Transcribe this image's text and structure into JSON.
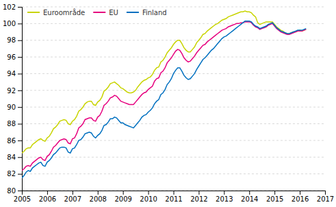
{
  "chart_data": {
    "type": "line",
    "x": [
      2005,
      2005.0833333333,
      2005.1666666667,
      2005.25,
      2005.3333333333,
      2005.4166666667,
      2005.5,
      2005.5833333333,
      2005.6666666667,
      2005.75,
      2005.8333333333,
      2005.9166666667,
      2006,
      2006.0833333333,
      2006.1666666667,
      2006.25,
      2006.3333333333,
      2006.4166666667,
      2006.5,
      2006.5833333333,
      2006.6666666667,
      2006.75,
      2006.8333333333,
      2006.9166666667,
      2007,
      2007.0833333333,
      2007.1666666667,
      2007.25,
      2007.3333333333,
      2007.4166666667,
      2007.5,
      2007.5833333333,
      2007.6666666667,
      2007.75,
      2007.8333333333,
      2007.9166666667,
      2008,
      2008.0833333333,
      2008.1666666667,
      2008.25,
      2008.3333333333,
      2008.4166666667,
      2008.5,
      2008.5833333333,
      2008.6666666667,
      2008.75,
      2008.8333333333,
      2008.9166666667,
      2009,
      2009.0833333333,
      2009.1666666667,
      2009.25,
      2009.3333333333,
      2009.4166666667,
      2009.5,
      2009.5833333333,
      2009.6666666667,
      2009.75,
      2009.8333333333,
      2009.9166666667,
      2010,
      2010.0833333333,
      2010.1666666667,
      2010.25,
      2010.3333333333,
      2010.4166666667,
      2010.5,
      2010.5833333333,
      2010.6666666667,
      2010.75,
      2010.8333333333,
      2010.9166666667,
      2011,
      2011.0833333333,
      2011.1666666667,
      2011.25,
      2011.3333333333,
      2011.4166666667,
      2011.5,
      2011.5833333333,
      2011.6666666667,
      2011.75,
      2011.8333333333,
      2011.9166666667,
      2012,
      2012.0833333333,
      2012.1666666667,
      2012.25,
      2012.3333333333,
      2012.4166666667,
      2012.5,
      2012.5833333333,
      2012.6666666667,
      2012.75,
      2012.8333333333,
      2012.9166666667,
      2013,
      2013.0833333333,
      2013.1666666667,
      2013.25,
      2013.3333333333,
      2013.4166666667,
      2013.5,
      2013.5833333333,
      2013.6666666667,
      2013.75,
      2013.8333333333,
      2013.9166666667,
      2014,
      2014.0833333333,
      2014.1666666667,
      2014.25,
      2014.3333333333,
      2014.4166666667,
      2014.5,
      2014.5833333333,
      2014.6666666667,
      2014.75,
      2014.8333333333,
      2014.9166666667,
      2015,
      2015.0833333333,
      2015.1666666667,
      2015.25,
      2015.3333333333,
      2015.4166666667,
      2015.5,
      2015.5833333333,
      2015.6666666667,
      2015.75,
      2015.8333333333,
      2015.9166666667,
      2016,
      2016.0833333333,
      2016.1666666667,
      2016.25
    ],
    "series": [
      {
        "name": "Euroområde",
        "color": "#c8d400",
        "values": [
          84.5,
          84.7,
          85.0,
          85.1,
          85.1,
          85.5,
          85.7,
          85.9,
          86.1,
          86.2,
          86.0,
          85.9,
          86.3,
          86.5,
          86.9,
          87.4,
          87.6,
          87.9,
          88.3,
          88.4,
          88.5,
          88.4,
          88.0,
          87.9,
          88.3,
          88.5,
          88.9,
          89.5,
          89.7,
          90.0,
          90.4,
          90.6,
          90.7,
          90.7,
          90.3,
          90.2,
          90.6,
          90.8,
          91.2,
          91.9,
          92.1,
          92.4,
          92.8,
          92.9,
          93.0,
          92.8,
          92.6,
          92.3,
          92.2,
          92.0,
          91.8,
          91.7,
          91.7,
          91.8,
          92.0,
          92.4,
          92.7,
          93.0,
          93.2,
          93.3,
          93.5,
          93.6,
          93.9,
          94.4,
          94.7,
          94.8,
          95.4,
          95.6,
          96.0,
          96.5,
          96.8,
          97.1,
          97.5,
          97.8,
          98.0,
          98.0,
          97.6,
          97.1,
          96.8,
          96.6,
          96.6,
          96.9,
          97.2,
          97.7,
          98.0,
          98.3,
          98.7,
          98.8,
          99.1,
          99.3,
          99.5,
          99.7,
          99.9,
          100.0,
          100.2,
          100.4,
          100.5,
          100.6,
          100.8,
          100.9,
          101.0,
          101.1,
          101.2,
          101.3,
          101.4,
          101.4,
          101.5,
          101.4,
          101.4,
          101.3,
          101.0,
          100.8,
          100.1,
          99.9,
          100.0,
          100.1,
          100.2,
          100.2,
          100.2,
          100.2,
          99.9,
          99.6,
          99.4,
          99.2,
          99.1,
          98.9,
          98.8,
          98.8,
          98.9,
          99.0,
          99.0,
          99.1,
          99.2,
          99.1,
          99.2,
          99.3
        ]
      },
      {
        "name": "EU",
        "color": "#e6007e",
        "values": [
          82.4,
          82.6,
          82.9,
          83.0,
          82.9,
          83.3,
          83.5,
          83.7,
          83.9,
          84.0,
          83.7,
          83.6,
          84.1,
          84.3,
          84.7,
          85.2,
          85.4,
          85.7,
          86.0,
          86.1,
          86.2,
          86.1,
          85.7,
          85.6,
          86.2,
          86.3,
          86.8,
          87.5,
          87.7,
          88.0,
          88.5,
          88.6,
          88.7,
          88.7,
          88.4,
          88.3,
          88.8,
          89.0,
          89.5,
          90.2,
          90.4,
          90.7,
          91.1,
          91.2,
          91.4,
          91.3,
          91.0,
          90.7,
          90.6,
          90.5,
          90.4,
          90.3,
          90.3,
          90.3,
          90.6,
          90.9,
          91.2,
          91.5,
          91.7,
          91.8,
          92.1,
          92.3,
          92.5,
          93.1,
          93.4,
          93.5,
          94.1,
          94.3,
          94.7,
          95.3,
          95.6,
          95.9,
          96.3,
          96.7,
          96.9,
          96.8,
          96.4,
          95.9,
          95.6,
          95.4,
          95.5,
          95.8,
          96.1,
          96.5,
          96.8,
          97.1,
          97.4,
          97.5,
          97.8,
          98.0,
          98.2,
          98.4,
          98.6,
          98.8,
          99.0,
          99.2,
          99.3,
          99.4,
          99.6,
          99.7,
          99.8,
          99.9,
          100.0,
          100.0,
          100.1,
          100.1,
          100.2,
          100.2,
          100.2,
          100.1,
          99.8,
          99.6,
          99.5,
          99.3,
          99.4,
          99.5,
          99.6,
          99.8,
          99.9,
          100.0,
          99.7,
          99.4,
          99.2,
          99.0,
          98.9,
          98.8,
          98.7,
          98.7,
          98.8,
          98.9,
          99.0,
          99.1,
          99.1,
          99.1,
          99.2,
          99.3
        ]
      },
      {
        "name": "Finland",
        "color": "#0070c0",
        "values": [
          81.5,
          81.8,
          82.2,
          82.4,
          82.3,
          82.7,
          82.9,
          83.1,
          83.3,
          83.4,
          83.0,
          82.9,
          83.4,
          83.6,
          83.9,
          84.3,
          84.5,
          84.8,
          85.1,
          85.2,
          85.2,
          85.1,
          84.6,
          84.5,
          85.0,
          85.1,
          85.5,
          86.0,
          86.1,
          86.4,
          86.8,
          86.9,
          87.0,
          86.9,
          86.5,
          86.3,
          86.6,
          86.8,
          87.2,
          87.8,
          87.9,
          88.2,
          88.6,
          88.6,
          88.8,
          88.7,
          88.4,
          88.1,
          88.1,
          87.9,
          87.8,
          87.7,
          87.6,
          87.5,
          87.8,
          88.1,
          88.4,
          88.8,
          89.0,
          89.1,
          89.4,
          89.6,
          89.9,
          90.4,
          90.7,
          90.9,
          91.5,
          91.7,
          92.1,
          92.7,
          93.0,
          93.4,
          94.0,
          94.4,
          94.7,
          94.7,
          94.3,
          93.8,
          93.5,
          93.3,
          93.4,
          93.7,
          94.0,
          94.5,
          94.9,
          95.3,
          95.7,
          95.9,
          96.2,
          96.5,
          96.8,
          97.0,
          97.3,
          97.6,
          97.9,
          98.2,
          98.4,
          98.5,
          98.7,
          98.9,
          99.1,
          99.3,
          99.5,
          99.7,
          99.9,
          100.1,
          100.3,
          100.3,
          100.3,
          100.2,
          99.9,
          99.7,
          99.6,
          99.4,
          99.5,
          99.6,
          99.7,
          99.9,
          100.0,
          100.1,
          99.8,
          99.5,
          99.3,
          99.1,
          99.0,
          98.9,
          98.8,
          98.8,
          98.9,
          99.0,
          99.1,
          99.2,
          99.2,
          99.2,
          99.3,
          99.4
        ]
      }
    ],
    "xlim": [
      2005,
      2017
    ],
    "xticks": [
      2005,
      2006,
      2007,
      2008,
      2009,
      2010,
      2011,
      2012,
      2013,
      2014,
      2015,
      2016,
      2017
    ],
    "ylim": [
      80,
      102
    ],
    "yticks": [
      80,
      82,
      84,
      86,
      88,
      90,
      92,
      94,
      96,
      98,
      100,
      102
    ],
    "grid": true,
    "legend": "upper left"
  }
}
